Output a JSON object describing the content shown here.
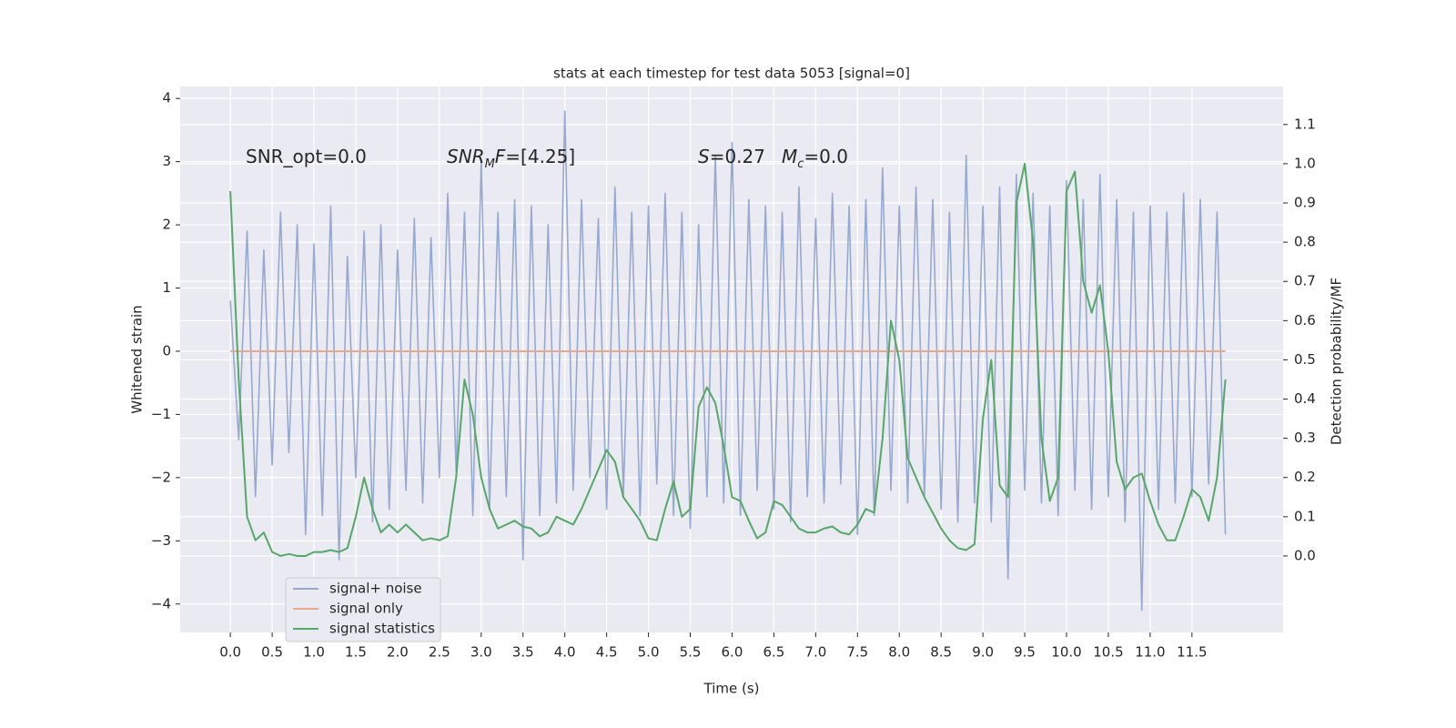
{
  "chart_data": {
    "type": "line",
    "title": "stats at each timestep for test data 5053 [signal=0]",
    "xlabel": "Time (s)",
    "ylabel": "Whitened strain",
    "y2label": "Detection probability/MF",
    "annotations": [
      [
        {
          "text": "SNR_opt=0.0"
        }
      ],
      [
        {
          "text": "SNR",
          "italic": true
        },
        {
          "text": "M",
          "italic": true,
          "sub": true
        },
        {
          "text": "F",
          "italic": true
        },
        {
          "text": "=[4.25]"
        }
      ],
      [
        {
          "text": "S",
          "italic": true
        },
        {
          "text": "=0.27"
        }
      ],
      [
        {
          "text": "M",
          "italic": true
        },
        {
          "text": "c",
          "italic": true,
          "sub": true
        },
        {
          "text": "=0.0"
        }
      ]
    ],
    "x": [
      0,
      0.1,
      0.2,
      0.3,
      0.4,
      0.5,
      0.6,
      0.7,
      0.8,
      0.9,
      1,
      1.1,
      1.2,
      1.3,
      1.4,
      1.5,
      1.6,
      1.7,
      1.8,
      1.9,
      2,
      2.1,
      2.2,
      2.3,
      2.4,
      2.5,
      2.6,
      2.7,
      2.8,
      2.9,
      3,
      3.1,
      3.2,
      3.3,
      3.4,
      3.5,
      3.6,
      3.7,
      3.8,
      3.9,
      4,
      4.1,
      4.2,
      4.3,
      4.4,
      4.5,
      4.6,
      4.7,
      4.8,
      4.9,
      5,
      5.1,
      5.2,
      5.3,
      5.4,
      5.5,
      5.6,
      5.7,
      5.8,
      5.9,
      6,
      6.1,
      6.2,
      6.3,
      6.4,
      6.5,
      6.6,
      6.7,
      6.8,
      6.9,
      7,
      7.1,
      7.2,
      7.3,
      7.4,
      7.5,
      7.6,
      7.7,
      7.8,
      7.9,
      8,
      8.1,
      8.2,
      8.3,
      8.4,
      8.5,
      8.6,
      8.7,
      8.8,
      8.9,
      9,
      9.1,
      9.2,
      9.3,
      9.4,
      9.5,
      9.6,
      9.7,
      9.8,
      9.9,
      10,
      10.1,
      10.2,
      10.3,
      10.4,
      10.5,
      10.6,
      10.7,
      10.8,
      10.9,
      11,
      11.1,
      11.2,
      11.3,
      11.4,
      11.5,
      11.6,
      11.7,
      11.8,
      11.9
    ],
    "series": [
      {
        "name": "signal+ noise",
        "color": "#97a9d0",
        "values": [
          0.8,
          -1.4,
          1.9,
          -2.3,
          1.6,
          -1.8,
          2.2,
          -1.6,
          2.0,
          -2.9,
          1.7,
          -2.6,
          2.3,
          -3.3,
          1.5,
          -2.0,
          1.9,
          -2.7,
          2.0,
          -2.5,
          1.6,
          -2.2,
          2.1,
          -2.4,
          1.8,
          -2.0,
          2.5,
          -1.9,
          2.2,
          -2.6,
          3.0,
          -2.5,
          2.2,
          -2.3,
          2.4,
          -3.3,
          2.3,
          -2.6,
          2.0,
          -2.4,
          3.8,
          -2.2,
          2.4,
          -2.0,
          2.1,
          -2.5,
          2.6,
          -2.3,
          2.2,
          -2.6,
          2.3,
          -2.1,
          2.5,
          -2.6,
          2.2,
          -2.8,
          2.0,
          -2.3,
          3.1,
          -2.4,
          3.3,
          -2.6,
          2.4,
          -2.2,
          2.3,
          -2.5,
          2.2,
          -2.7,
          2.6,
          -2.3,
          2.1,
          -2.4,
          2.5,
          -2.1,
          2.3,
          -2.9,
          2.4,
          -2.6,
          2.9,
          -2.2,
          2.3,
          -2.4,
          2.6,
          -2.3,
          2.4,
          -2.5,
          2.2,
          -2.7,
          3.1,
          -2.4,
          2.3,
          -2.7,
          2.6,
          -3.6,
          2.8,
          -2.2,
          2.5,
          -2.4,
          2.3,
          -2.6,
          2.7,
          -2.2,
          2.4,
          -2.5,
          2.8,
          -2.3,
          2.4,
          -2.7,
          2.2,
          -4.1,
          2.3,
          -2.5,
          2.2,
          -2.4,
          2.5,
          -2.3,
          2.4,
          -2.1,
          2.2,
          -2.9
        ]
      },
      {
        "name": "signal only",
        "color": "#e8a98a",
        "values": [
          0,
          0,
          0,
          0,
          0,
          0,
          0,
          0,
          0,
          0,
          0,
          0,
          0,
          0,
          0,
          0,
          0,
          0,
          0,
          0,
          0,
          0,
          0,
          0,
          0,
          0,
          0,
          0,
          0,
          0,
          0,
          0,
          0,
          0,
          0,
          0,
          0,
          0,
          0,
          0,
          0,
          0,
          0,
          0,
          0,
          0,
          0,
          0,
          0,
          0,
          0,
          0,
          0,
          0,
          0,
          0,
          0,
          0,
          0,
          0,
          0,
          0,
          0,
          0,
          0,
          0,
          0,
          0,
          0,
          0,
          0,
          0,
          0,
          0,
          0,
          0,
          0,
          0,
          0,
          0,
          0,
          0,
          0,
          0,
          0,
          0,
          0,
          0,
          0,
          0,
          0,
          0,
          0,
          0,
          0,
          0,
          0,
          0,
          0,
          0,
          0,
          0,
          0,
          0,
          0,
          0,
          0,
          0,
          0,
          0,
          0,
          0,
          0,
          0,
          0,
          0,
          0,
          0,
          0,
          0
        ]
      },
      {
        "name": "signal statistics",
        "color": "#55a868",
        "axis": "y2",
        "values": [
          0.93,
          0.45,
          0.1,
          0.04,
          0.06,
          0.01,
          0.0,
          0.005,
          0.0,
          0.0,
          0.01,
          0.01,
          0.015,
          0.01,
          0.02,
          0.1,
          0.2,
          0.12,
          0.06,
          0.08,
          0.06,
          0.08,
          0.06,
          0.04,
          0.045,
          0.04,
          0.05,
          0.2,
          0.45,
          0.36,
          0.2,
          0.12,
          0.07,
          0.08,
          0.09,
          0.075,
          0.07,
          0.05,
          0.06,
          0.1,
          0.09,
          0.08,
          0.12,
          0.17,
          0.22,
          0.27,
          0.24,
          0.15,
          0.12,
          0.09,
          0.045,
          0.04,
          0.12,
          0.19,
          0.1,
          0.12,
          0.38,
          0.43,
          0.39,
          0.28,
          0.15,
          0.14,
          0.09,
          0.045,
          0.06,
          0.14,
          0.13,
          0.1,
          0.07,
          0.06,
          0.06,
          0.07,
          0.075,
          0.06,
          0.055,
          0.08,
          0.12,
          0.11,
          0.3,
          0.6,
          0.5,
          0.25,
          0.2,
          0.15,
          0.11,
          0.07,
          0.04,
          0.02,
          0.015,
          0.03,
          0.35,
          0.5,
          0.18,
          0.15,
          0.9,
          1.0,
          0.8,
          0.3,
          0.14,
          0.2,
          0.93,
          0.98,
          0.7,
          0.62,
          0.69,
          0.52,
          0.24,
          0.17,
          0.2,
          0.21,
          0.14,
          0.08,
          0.04,
          0.04,
          0.1,
          0.17,
          0.15,
          0.09,
          0.2,
          0.45
        ]
      }
    ],
    "xlim": [
      -0.6,
      12.59
    ],
    "ylim": [
      -4.45,
      4.19
    ],
    "y2lim": [
      -0.195,
      1.197
    ],
    "xticks": [
      {
        "value": 0,
        "label": "0.0"
      },
      0.5,
      {
        "value": 1,
        "label": "1.0"
      },
      1.5,
      {
        "value": 2,
        "label": "2.0"
      },
      2.5,
      {
        "value": 3,
        "label": "3.0"
      },
      3.5,
      {
        "value": 4,
        "label": "4.0"
      },
      4.5,
      {
        "value": 5,
        "label": "5.0"
      },
      5.5,
      {
        "value": 6,
        "label": "6.0"
      },
      6.5,
      {
        "value": 7,
        "label": "7.0"
      },
      7.5,
      {
        "value": 8,
        "label": "8.0"
      },
      8.5,
      {
        "value": 9,
        "label": "9.0"
      },
      9.5,
      {
        "value": 10,
        "label": "10.0"
      },
      10.5,
      {
        "value": 11,
        "label": "11.0"
      },
      11.5
    ],
    "yticks": [
      {
        "value": -4,
        "label": "−4"
      },
      {
        "value": -3,
        "label": "−3"
      },
      {
        "value": -2,
        "label": "−2"
      },
      {
        "value": -1,
        "label": "−1"
      },
      0,
      1,
      2,
      3,
      4
    ],
    "y2ticks": [
      {
        "value": 0,
        "label": "0.0"
      },
      0.1,
      0.2,
      0.3,
      0.4,
      0.5,
      0.6,
      0.7,
      0.8,
      0.9,
      {
        "value": 1,
        "label": "1.0"
      },
      1.1
    ],
    "grid": true,
    "legend": "lower left"
  }
}
